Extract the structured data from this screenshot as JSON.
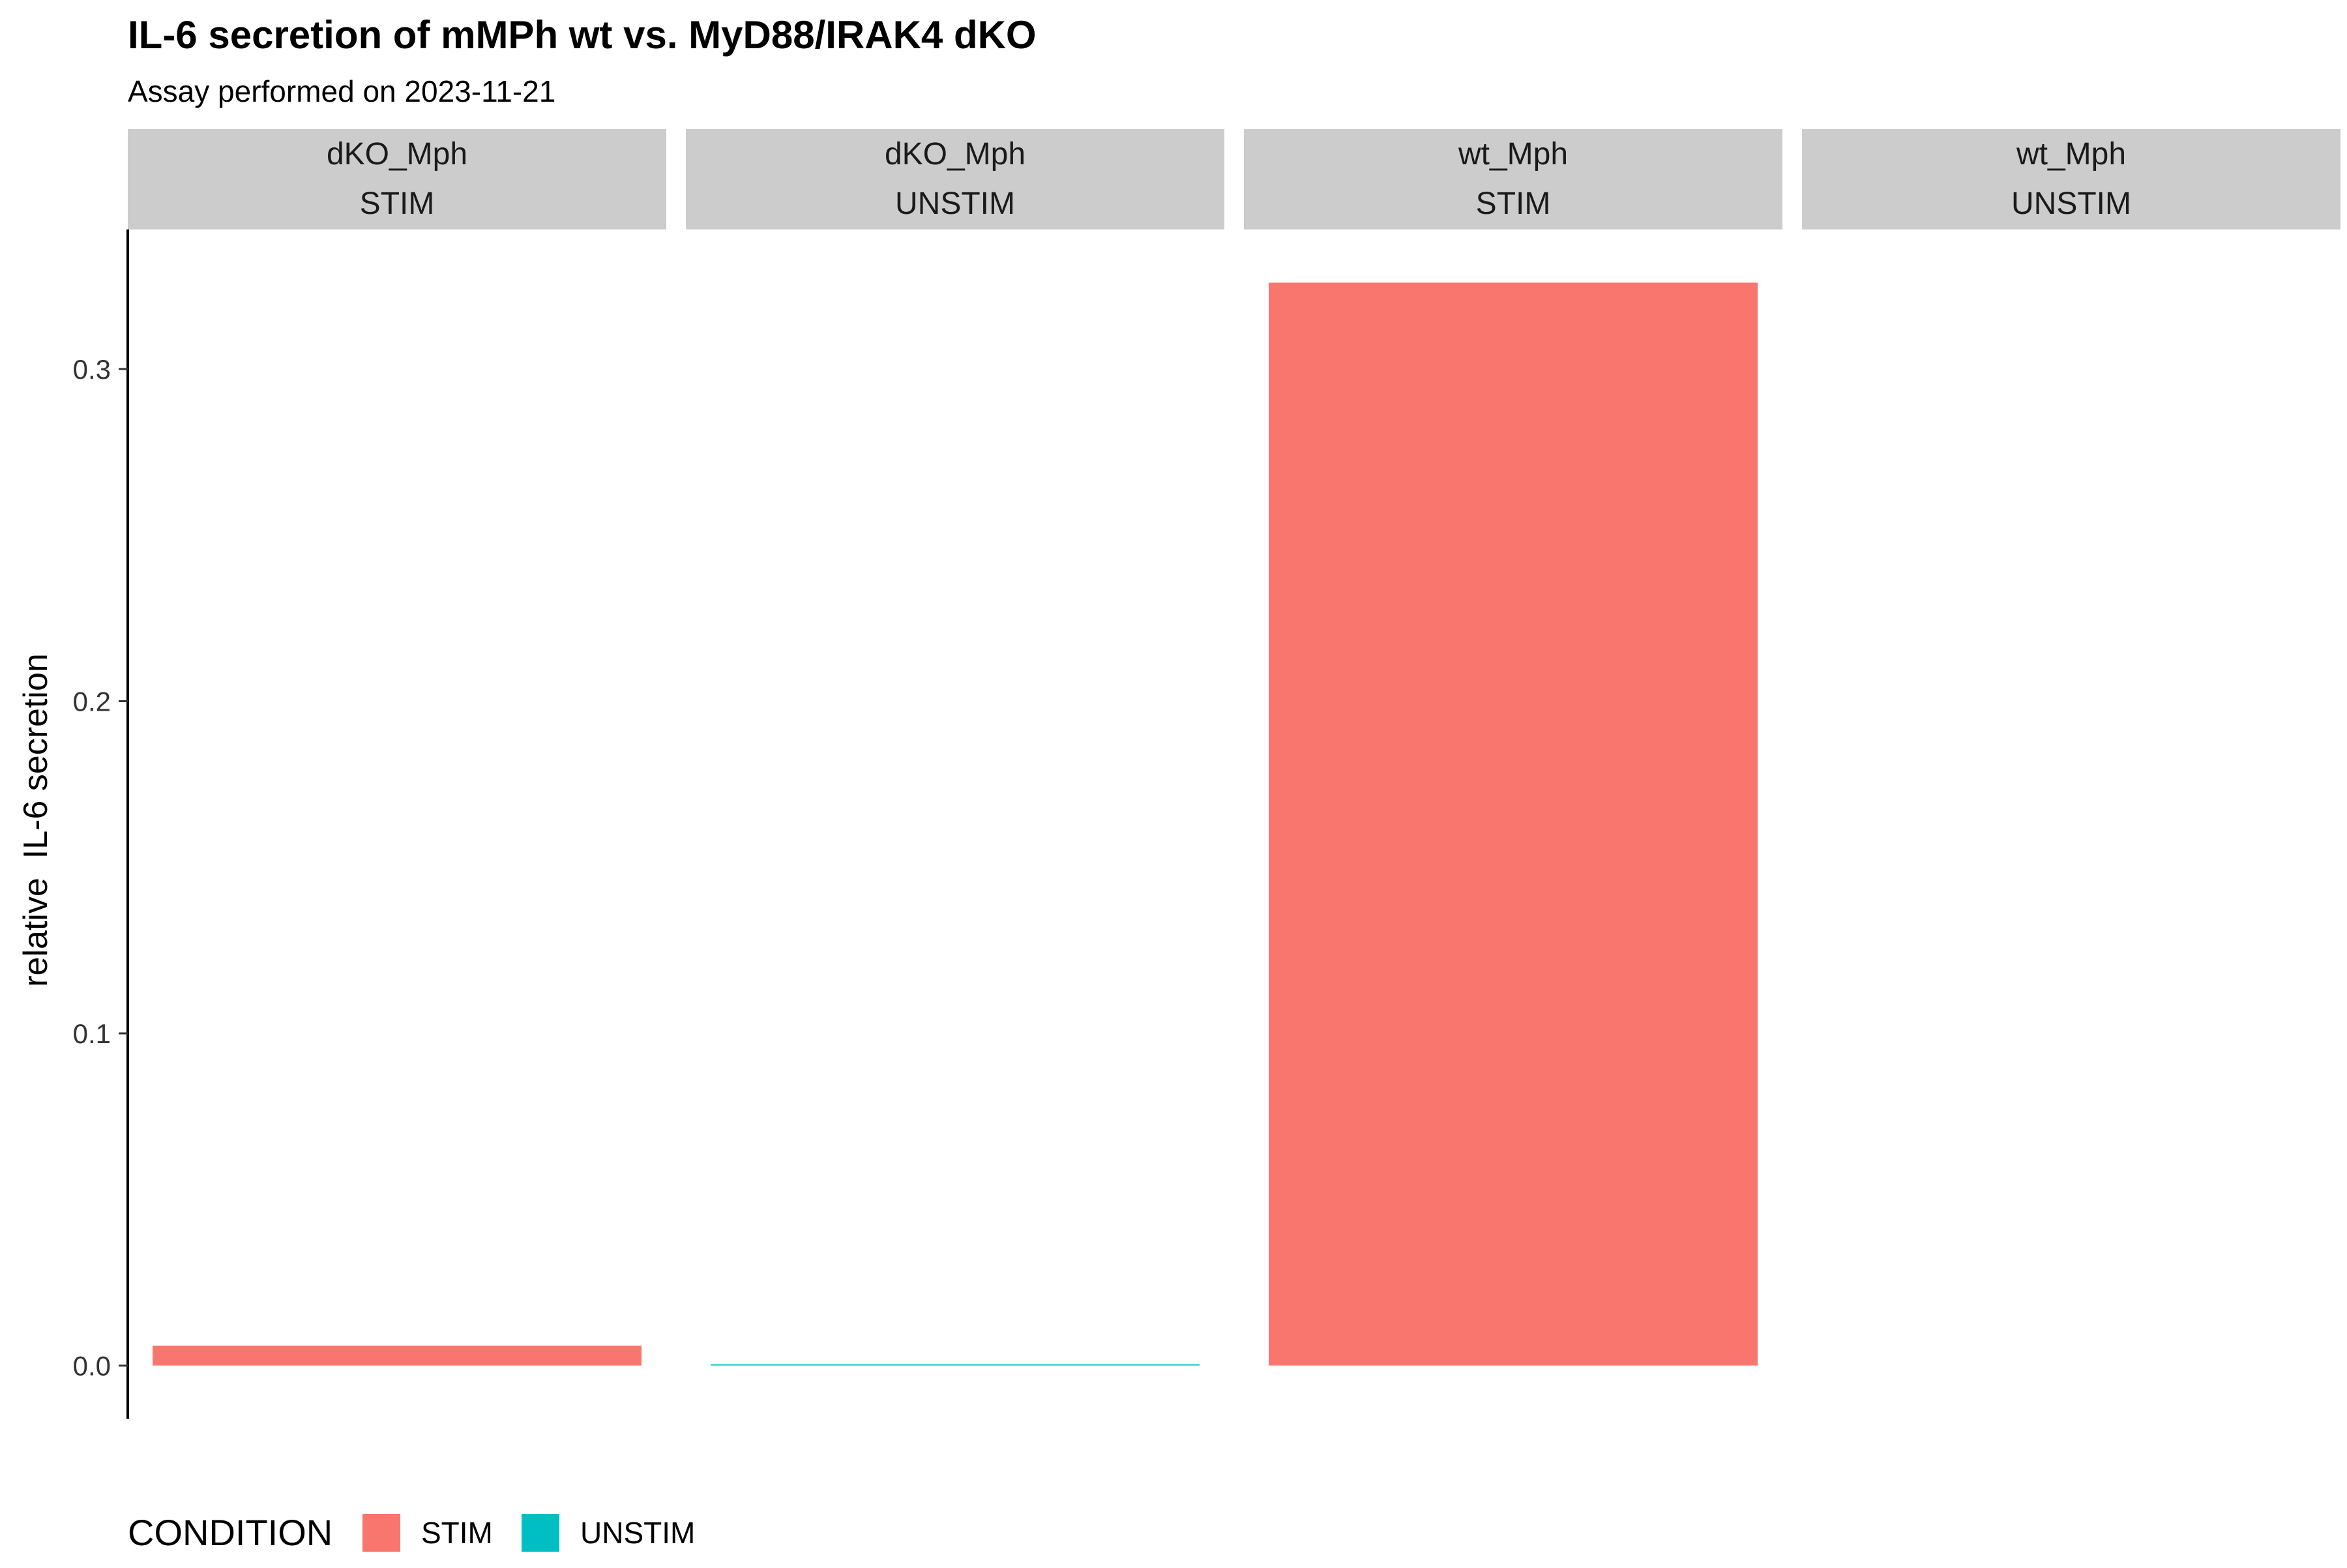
{
  "chart_data": {
    "type": "bar",
    "title": "IL-6 secretion of mMPh wt vs. MyD88/IRAK4 dKO",
    "subtitle": "Assay performed on 2023-11-21",
    "ylabel": "relative  IL-6 secretion",
    "xlabel": "",
    "ylim": [
      -0.016,
      0.342
    ],
    "yticks": [
      0.0,
      0.1,
      0.2,
      0.3
    ],
    "ytick_labels": [
      "0.0",
      "0.1",
      "0.2",
      "0.3"
    ],
    "grid": false,
    "legend": {
      "title": "CONDITION",
      "position": "bottom-left",
      "entries": [
        {
          "label": "STIM",
          "color": "#F8766D"
        },
        {
          "label": "UNSTIM",
          "color": "#00BFC4"
        }
      ]
    },
    "panels": [
      {
        "strip_top": "dKO_Mph",
        "strip_bottom": "STIM",
        "condition": "STIM",
        "value": 0.006
      },
      {
        "strip_top": "dKO_Mph",
        "strip_bottom": "UNSTIM",
        "condition": "UNSTIM",
        "value": 0.0003
      },
      {
        "strip_top": "wt_Mph",
        "strip_bottom": "STIM",
        "condition": "STIM",
        "value": 0.326
      },
      {
        "strip_top": "wt_Mph",
        "strip_bottom": "UNSTIM",
        "condition": "UNSTIM",
        "value": 0.0
      }
    ],
    "colors": {
      "STIM": "#F8766D",
      "UNSTIM": "#00BFC4",
      "strip_background": "#CCCCCC",
      "axis_line": "#000000"
    }
  }
}
